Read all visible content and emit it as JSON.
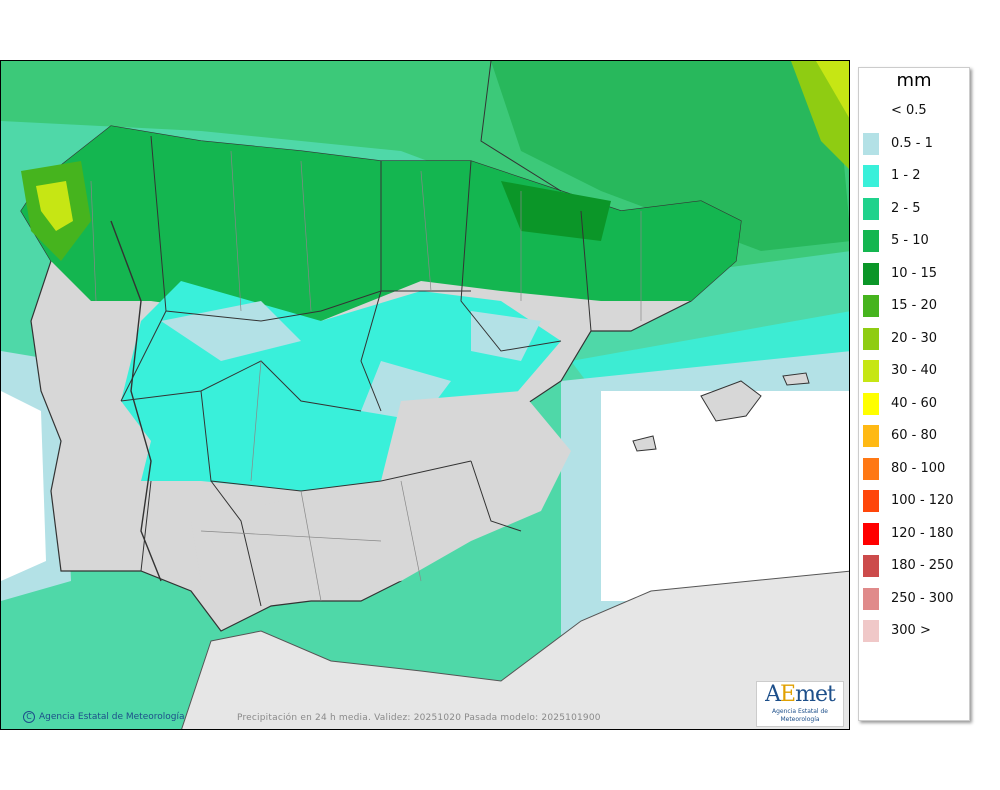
{
  "legend": {
    "unit": "mm",
    "items": [
      {
        "label": "< 0.5",
        "color": "#ffffff"
      },
      {
        "label": "0.5 - 1",
        "color": "#b3e1e6"
      },
      {
        "label": "1 - 2",
        "color": "#39f0da"
      },
      {
        "label": "2 - 5",
        "color": "#1fd28c"
      },
      {
        "label": "5 - 10",
        "color": "#14b650"
      },
      {
        "label": "10 - 15",
        "color": "#0b9628"
      },
      {
        "label": "15 - 20",
        "color": "#46b41e"
      },
      {
        "label": "20 - 30",
        "color": "#8fcc12"
      },
      {
        "label": "30 - 40",
        "color": "#c6e614"
      },
      {
        "label": "40 - 60",
        "color": "#ffff00"
      },
      {
        "label": "60 - 80",
        "color": "#ffb914"
      },
      {
        "label": "80 - 100",
        "color": "#ff7814"
      },
      {
        "label": "100 - 120",
        "color": "#ff460a"
      },
      {
        "label": "120 - 180",
        "color": "#ff0000"
      },
      {
        "label": "180 - 250",
        "color": "#cc4b4b"
      },
      {
        "label": "250 - 300",
        "color": "#e08a8a"
      },
      {
        "label": "300 >",
        "color": "#f0c8c8"
      }
    ]
  },
  "footer": {
    "copyright_symbol": "C",
    "credit": "Agencia Estatal de Meteorología",
    "validity": "Precipitación en 24 h media. Validez: 20251020 Pasada modelo: 2025101900"
  },
  "logo": {
    "word_a": "A",
    "word_e": "E",
    "word_rest": "met",
    "subtitle": "Agencia Estatal de Meteorología"
  },
  "colors": {
    "sea": "#4fd8a8",
    "land_dry": "#d7d7d7",
    "africa": "#e6e6e6",
    "border": "#333333"
  }
}
